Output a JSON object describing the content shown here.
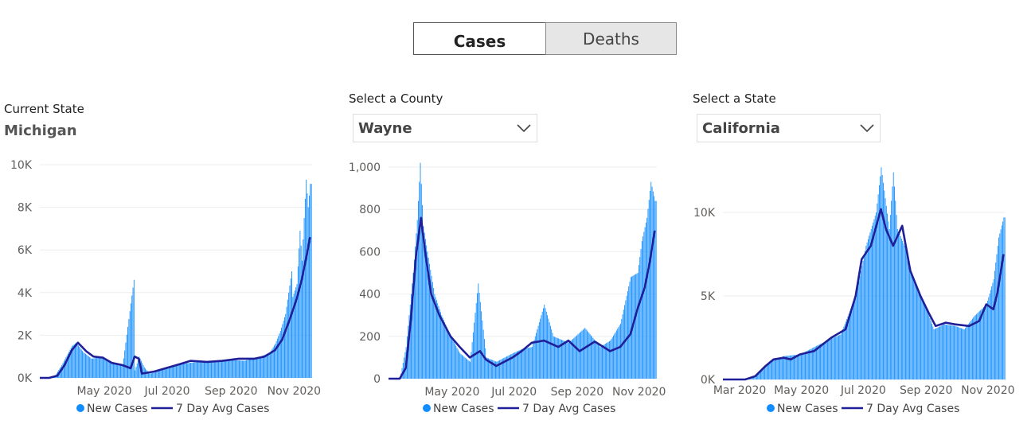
{
  "toggle": {
    "cases_label": "Cases",
    "deaths_label": "Deaths"
  },
  "panels": [
    {
      "header_label": "Current State",
      "value": "Michigan"
    },
    {
      "header_label": "Select a County",
      "value": "Wayne"
    },
    {
      "header_label": "Select a State",
      "value": "California"
    }
  ],
  "colors": {
    "bar": "#118DFF",
    "line": "#1F1F99",
    "grid": "#eeeeee",
    "axis_text": "#605E5C"
  },
  "icons": {
    "dropdown": "chevron-down-icon",
    "legend_bar": "dot-icon",
    "legend_line": "line-icon"
  },
  "chart_data": [
    {
      "type": "bar",
      "region": "Michigan",
      "x_range": [
        "2020-03-01",
        "2020-11-20"
      ],
      "ylim": [
        0,
        10000
      ],
      "y_ticks": [
        0,
        2000,
        4000,
        6000,
        8000,
        10000
      ],
      "y_tick_labels": [
        "0K",
        "2K",
        "4K",
        "6K",
        "8K",
        "10K"
      ],
      "x_ticks": [
        "2020-05-01",
        "2020-07-01",
        "2020-09-01",
        "2020-11-01"
      ],
      "x_tick_labels": [
        "May 2020",
        "Jul 2020",
        "Sep 2020",
        "Nov 2020"
      ],
      "grid": true,
      "legend_position": "bottom",
      "series": [
        {
          "name": "New Cases",
          "kind": "bar",
          "points": [
            [
              "2020-03-01",
              0
            ],
            [
              "2020-03-10",
              0
            ],
            [
              "2020-03-15",
              60
            ],
            [
              "2020-03-22",
              600
            ],
            [
              "2020-04-01",
              1500
            ],
            [
              "2020-04-05",
              1650
            ],
            [
              "2020-04-12",
              1200
            ],
            [
              "2020-04-20",
              900
            ],
            [
              "2020-05-01",
              1000
            ],
            [
              "2020-05-10",
              700
            ],
            [
              "2020-05-20",
              550
            ],
            [
              "2020-05-31",
              4600
            ],
            [
              "2020-06-01",
              350
            ],
            [
              "2020-06-05",
              1000
            ],
            [
              "2020-06-10",
              500
            ],
            [
              "2020-06-15",
              200
            ],
            [
              "2020-06-20",
              250
            ],
            [
              "2020-07-01",
              500
            ],
            [
              "2020-07-15",
              650
            ],
            [
              "2020-08-01",
              750
            ],
            [
              "2020-08-15",
              750
            ],
            [
              "2020-09-01",
              850
            ],
            [
              "2020-09-15",
              800
            ],
            [
              "2020-10-01",
              1000
            ],
            [
              "2020-10-10",
              1200
            ],
            [
              "2020-10-15",
              1600
            ],
            [
              "2020-10-20",
              2200
            ],
            [
              "2020-10-25",
              3000
            ],
            [
              "2020-10-31",
              5000
            ],
            [
              "2020-11-01",
              3800
            ],
            [
              "2020-11-05",
              4400
            ],
            [
              "2020-11-08",
              6900
            ],
            [
              "2020-11-10",
              5500
            ],
            [
              "2020-11-12",
              7500
            ],
            [
              "2020-11-14",
              9300
            ],
            [
              "2020-11-16",
              8000
            ],
            [
              "2020-11-18",
              9100
            ]
          ]
        },
        {
          "name": "7 Day Avg Cases",
          "kind": "line",
          "points": [
            [
              "2020-03-01",
              0
            ],
            [
              "2020-03-10",
              0
            ],
            [
              "2020-03-18",
              100
            ],
            [
              "2020-03-25",
              600
            ],
            [
              "2020-04-01",
              1300
            ],
            [
              "2020-04-07",
              1650
            ],
            [
              "2020-04-15",
              1250
            ],
            [
              "2020-04-22",
              1000
            ],
            [
              "2020-05-01",
              950
            ],
            [
              "2020-05-10",
              700
            ],
            [
              "2020-05-20",
              600
            ],
            [
              "2020-05-28",
              450
            ],
            [
              "2020-06-01",
              1000
            ],
            [
              "2020-06-05",
              900
            ],
            [
              "2020-06-08",
              200
            ],
            [
              "2020-06-20",
              300
            ],
            [
              "2020-07-01",
              450
            ],
            [
              "2020-07-15",
              650
            ],
            [
              "2020-07-25",
              800
            ],
            [
              "2020-08-10",
              750
            ],
            [
              "2020-08-25",
              800
            ],
            [
              "2020-09-10",
              900
            ],
            [
              "2020-09-25",
              900
            ],
            [
              "2020-10-05",
              1000
            ],
            [
              "2020-10-15",
              1300
            ],
            [
              "2020-10-22",
              1800
            ],
            [
              "2020-10-29",
              2700
            ],
            [
              "2020-11-05",
              3700
            ],
            [
              "2020-11-10",
              4600
            ],
            [
              "2020-11-15",
              5800
            ],
            [
              "2020-11-18",
              6600
            ]
          ]
        }
      ]
    },
    {
      "type": "bar",
      "region": "Wayne",
      "x_range": [
        "2020-03-01",
        "2020-11-20"
      ],
      "ylim": [
        0,
        1000
      ],
      "y_ticks": [
        0,
        200,
        400,
        600,
        800,
        1000
      ],
      "y_tick_labels": [
        "0",
        "200",
        "400",
        "600",
        "800",
        "1,000"
      ],
      "x_ticks": [
        "2020-05-01",
        "2020-07-01",
        "2020-09-01",
        "2020-11-01"
      ],
      "x_tick_labels": [
        "May 2020",
        "Jul 2020",
        "Sep 2020",
        "Nov 2020"
      ],
      "grid": true,
      "legend_position": "bottom",
      "series": [
        {
          "name": "New Cases",
          "kind": "bar",
          "points": [
            [
              "2020-03-01",
              0
            ],
            [
              "2020-03-12",
              0
            ],
            [
              "2020-03-18",
              150
            ],
            [
              "2020-03-25",
              500
            ],
            [
              "2020-03-29",
              750
            ],
            [
              "2020-04-01",
              1020
            ],
            [
              "2020-04-04",
              720
            ],
            [
              "2020-04-08",
              600
            ],
            [
              "2020-04-15",
              400
            ],
            [
              "2020-04-22",
              300
            ],
            [
              "2020-05-01",
              200
            ],
            [
              "2020-05-10",
              120
            ],
            [
              "2020-05-20",
              80
            ],
            [
              "2020-05-28",
              450
            ],
            [
              "2020-06-05",
              100
            ],
            [
              "2020-06-15",
              80
            ],
            [
              "2020-07-01",
              120
            ],
            [
              "2020-07-10",
              140
            ],
            [
              "2020-07-20",
              150
            ],
            [
              "2020-08-01",
              350
            ],
            [
              "2020-08-10",
              200
            ],
            [
              "2020-08-25",
              170
            ],
            [
              "2020-09-10",
              240
            ],
            [
              "2020-09-25",
              150
            ],
            [
              "2020-10-05",
              180
            ],
            [
              "2020-10-15",
              260
            ],
            [
              "2020-10-25",
              480
            ],
            [
              "2020-11-01",
              500
            ],
            [
              "2020-11-05",
              650
            ],
            [
              "2020-11-10",
              760
            ],
            [
              "2020-11-14",
              930
            ],
            [
              "2020-11-18",
              840
            ]
          ]
        },
        {
          "name": "7 Day Avg Cases",
          "kind": "line",
          "points": [
            [
              "2020-03-01",
              0
            ],
            [
              "2020-03-12",
              0
            ],
            [
              "2020-03-18",
              50
            ],
            [
              "2020-03-23",
              280
            ],
            [
              "2020-03-28",
              580
            ],
            [
              "2020-04-02",
              760
            ],
            [
              "2020-04-06",
              600
            ],
            [
              "2020-04-12",
              400
            ],
            [
              "2020-04-20",
              300
            ],
            [
              "2020-05-01",
              200
            ],
            [
              "2020-05-10",
              150
            ],
            [
              "2020-05-20",
              100
            ],
            [
              "2020-05-30",
              130
            ],
            [
              "2020-06-05",
              90
            ],
            [
              "2020-06-15",
              60
            ],
            [
              "2020-07-01",
              100
            ],
            [
              "2020-07-10",
              130
            ],
            [
              "2020-07-20",
              170
            ],
            [
              "2020-08-01",
              180
            ],
            [
              "2020-08-15",
              150
            ],
            [
              "2020-08-25",
              180
            ],
            [
              "2020-09-05",
              130
            ],
            [
              "2020-09-20",
              175
            ],
            [
              "2020-10-05",
              130
            ],
            [
              "2020-10-15",
              150
            ],
            [
              "2020-10-25",
              210
            ],
            [
              "2020-11-01",
              330
            ],
            [
              "2020-11-08",
              430
            ],
            [
              "2020-11-13",
              550
            ],
            [
              "2020-11-18",
              700
            ]
          ]
        }
      ]
    },
    {
      "type": "bar",
      "region": "California",
      "x_range": [
        "2020-02-15",
        "2020-11-20"
      ],
      "ylim": [
        0,
        14000
      ],
      "y_ticks": [
        0,
        5000,
        10000
      ],
      "y_tick_labels": [
        "0K",
        "5K",
        "10K"
      ],
      "x_ticks": [
        "2020-03-01",
        "2020-05-01",
        "2020-07-01",
        "2020-09-01",
        "2020-11-01"
      ],
      "x_tick_labels": [
        "Mar 2020",
        "May 2020",
        "Jul 2020",
        "Sep 2020",
        "Nov 2020"
      ],
      "grid": true,
      "legend_position": "bottom",
      "series": [
        {
          "name": "New Cases",
          "kind": "bar",
          "points": [
            [
              "2020-02-15",
              0
            ],
            [
              "2020-03-08",
              0
            ],
            [
              "2020-03-20",
              300
            ],
            [
              "2020-04-01",
              1100
            ],
            [
              "2020-04-15",
              1400
            ],
            [
              "2020-05-01",
              1500
            ],
            [
              "2020-05-20",
              2100
            ],
            [
              "2020-06-10",
              2700
            ],
            [
              "2020-06-25",
              5000
            ],
            [
              "2020-07-05",
              8000
            ],
            [
              "2020-07-15",
              10000
            ],
            [
              "2020-07-20",
              12700
            ],
            [
              "2020-07-28",
              9000
            ],
            [
              "2020-08-01",
              12400
            ],
            [
              "2020-08-05",
              9000
            ],
            [
              "2020-08-12",
              8000
            ],
            [
              "2020-08-20",
              6200
            ],
            [
              "2020-09-01",
              4500
            ],
            [
              "2020-09-10",
              3000
            ],
            [
              "2020-09-20",
              3300
            ],
            [
              "2020-10-01",
              3200
            ],
            [
              "2020-10-10",
              3000
            ],
            [
              "2020-10-20",
              3800
            ],
            [
              "2020-11-01",
              4500
            ],
            [
              "2020-11-08",
              6000
            ],
            [
              "2020-11-13",
              8500
            ],
            [
              "2020-11-18",
              9700
            ]
          ]
        },
        {
          "name": "7 Day Avg Cases",
          "kind": "line",
          "points": [
            [
              "2020-02-15",
              0
            ],
            [
              "2020-03-08",
              0
            ],
            [
              "2020-03-18",
              200
            ],
            [
              "2020-03-28",
              800
            ],
            [
              "2020-04-05",
              1200
            ],
            [
              "2020-04-15",
              1300
            ],
            [
              "2020-04-22",
              1200
            ],
            [
              "2020-05-01",
              1500
            ],
            [
              "2020-05-15",
              1700
            ],
            [
              "2020-06-01",
              2500
            ],
            [
              "2020-06-15",
              3000
            ],
            [
              "2020-06-25",
              5000
            ],
            [
              "2020-07-01",
              7200
            ],
            [
              "2020-07-10",
              8000
            ],
            [
              "2020-07-20",
              10200
            ],
            [
              "2020-07-25",
              9000
            ],
            [
              "2020-08-01",
              8000
            ],
            [
              "2020-08-10",
              9200
            ],
            [
              "2020-08-18",
              6500
            ],
            [
              "2020-08-28",
              5000
            ],
            [
              "2020-09-05",
              4000
            ],
            [
              "2020-09-12",
              3200
            ],
            [
              "2020-09-22",
              3400
            ],
            [
              "2020-10-01",
              3300
            ],
            [
              "2020-10-15",
              3200
            ],
            [
              "2020-10-25",
              3500
            ],
            [
              "2020-11-01",
              4500
            ],
            [
              "2020-11-08",
              4200
            ],
            [
              "2020-11-12",
              5200
            ],
            [
              "2020-11-18",
              7500
            ]
          ]
        }
      ]
    }
  ]
}
